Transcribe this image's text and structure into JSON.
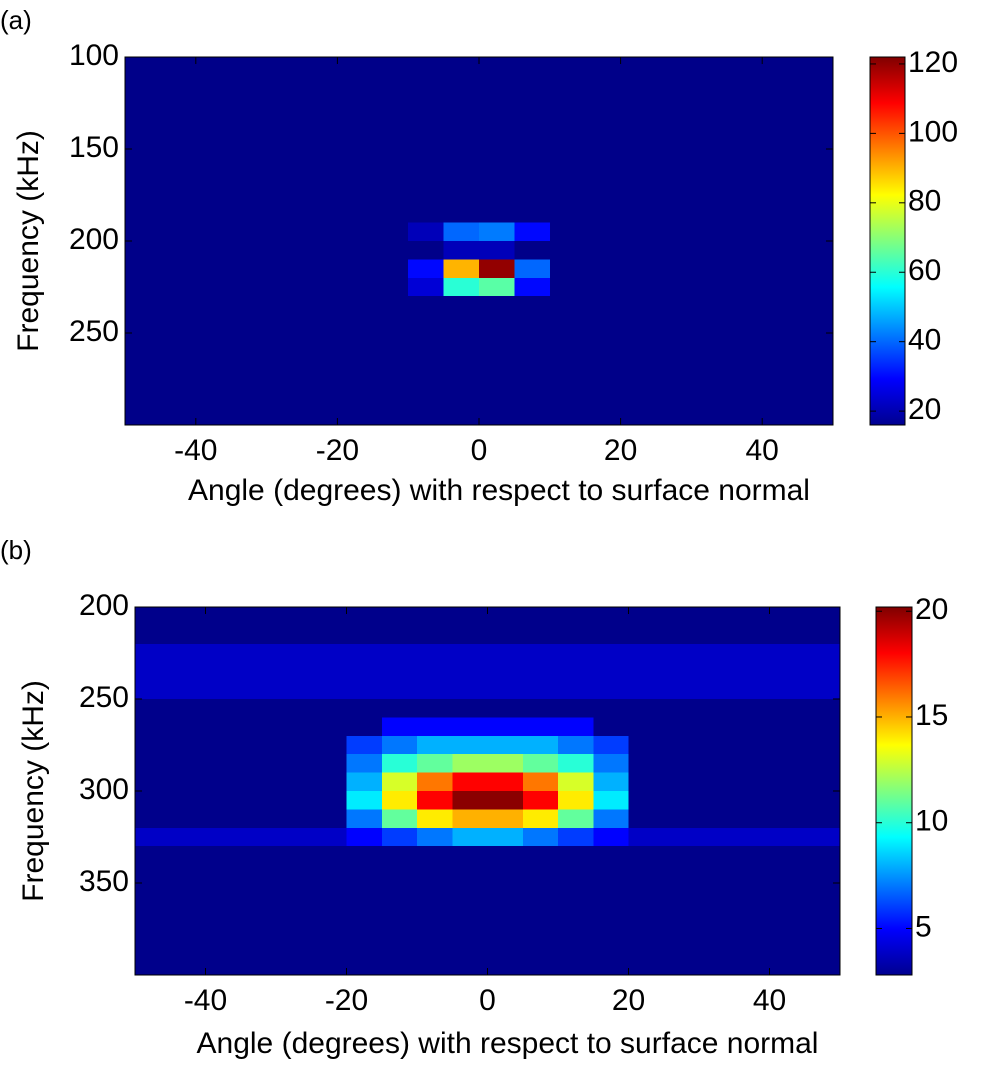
{
  "chart_data": [
    {
      "type": "heatmap",
      "label": "(a)",
      "x_label": "Angle (degrees) with respect to surface normal",
      "y_label": "Frequency (kHz)",
      "colormap": "jet",
      "y_reversed": true,
      "xlim": [
        -50,
        50
      ],
      "ylim": [
        100,
        300
      ],
      "xticks": [
        -40,
        -20,
        0,
        20,
        40
      ],
      "yticks": [
        100,
        150,
        200,
        250
      ],
      "clim": [
        16,
        122
      ],
      "cticks": [
        20,
        40,
        60,
        80,
        100,
        120
      ],
      "x_edges": [
        -50,
        -45,
        -40,
        -35,
        -30,
        -25,
        -20,
        -15,
        -10,
        -5,
        0,
        5,
        10,
        15,
        20,
        25,
        30,
        35,
        40,
        45,
        50
      ],
      "y_edges": [
        100,
        110,
        120,
        130,
        140,
        150,
        160,
        170,
        180,
        190,
        200,
        210,
        220,
        230,
        240,
        250,
        260,
        270,
        280,
        290,
        300
      ],
      "z": [
        [
          17,
          17,
          17,
          17,
          17,
          17,
          17,
          17,
          17,
          17,
          17,
          17,
          17,
          17,
          17,
          17,
          17,
          17,
          17,
          17
        ],
        [
          17,
          17,
          17,
          17,
          17,
          17,
          17,
          17,
          17,
          17,
          17,
          17,
          17,
          17,
          17,
          17,
          17,
          17,
          17,
          17
        ],
        [
          17,
          17,
          17,
          17,
          17,
          17,
          17,
          17,
          17,
          17,
          17,
          17,
          17,
          17,
          17,
          17,
          17,
          17,
          17,
          17
        ],
        [
          17,
          17,
          17,
          17,
          17,
          17,
          17,
          17,
          17,
          17,
          17,
          17,
          17,
          17,
          17,
          17,
          17,
          17,
          17,
          17
        ],
        [
          17,
          17,
          17,
          17,
          17,
          17,
          17,
          17,
          17,
          17,
          17,
          17,
          17,
          17,
          17,
          17,
          17,
          17,
          17,
          17
        ],
        [
          17,
          17,
          17,
          17,
          17,
          17,
          17,
          17,
          17,
          17,
          17,
          17,
          17,
          17,
          17,
          17,
          17,
          17,
          17,
          17
        ],
        [
          17,
          17,
          17,
          17,
          17,
          17,
          17,
          17,
          17,
          17,
          17,
          17,
          17,
          17,
          17,
          17,
          17,
          17,
          17,
          17
        ],
        [
          17,
          17,
          17,
          17,
          17,
          17,
          17,
          17,
          17,
          17,
          17,
          17,
          17,
          17,
          17,
          17,
          17,
          17,
          17,
          17
        ],
        [
          17,
          17,
          17,
          17,
          17,
          17,
          17,
          17,
          17,
          17,
          17,
          17,
          17,
          17,
          17,
          17,
          17,
          17,
          17,
          17
        ],
        [
          17,
          17,
          17,
          17,
          17,
          17,
          17,
          17,
          22,
          40,
          42,
          30,
          17,
          17,
          17,
          17,
          17,
          17,
          17,
          17
        ],
        [
          17,
          17,
          17,
          17,
          17,
          17,
          17,
          17,
          17,
          22,
          22,
          17,
          17,
          17,
          17,
          17,
          17,
          17,
          17,
          17
        ],
        [
          17,
          17,
          17,
          17,
          17,
          17,
          17,
          17,
          30,
          90,
          120,
          40,
          17,
          17,
          17,
          17,
          17,
          17,
          17,
          17
        ],
        [
          17,
          17,
          17,
          17,
          17,
          17,
          17,
          17,
          25,
          60,
          65,
          30,
          17,
          17,
          17,
          17,
          17,
          17,
          17,
          17
        ],
        [
          17,
          17,
          17,
          17,
          17,
          17,
          17,
          17,
          17,
          17,
          17,
          17,
          17,
          17,
          17,
          17,
          17,
          17,
          17,
          17
        ],
        [
          17,
          17,
          17,
          17,
          17,
          17,
          17,
          17,
          17,
          17,
          17,
          17,
          17,
          17,
          17,
          17,
          17,
          17,
          17,
          17
        ],
        [
          17,
          17,
          17,
          17,
          17,
          17,
          17,
          17,
          17,
          17,
          17,
          17,
          17,
          17,
          17,
          17,
          17,
          17,
          17,
          17
        ],
        [
          17,
          17,
          17,
          17,
          17,
          17,
          17,
          17,
          17,
          17,
          17,
          17,
          17,
          17,
          17,
          17,
          17,
          17,
          17,
          17
        ],
        [
          17,
          17,
          17,
          17,
          17,
          17,
          17,
          17,
          17,
          17,
          17,
          17,
          17,
          17,
          17,
          17,
          17,
          17,
          17,
          17
        ],
        [
          17,
          17,
          17,
          17,
          17,
          17,
          17,
          17,
          17,
          17,
          17,
          17,
          17,
          17,
          17,
          17,
          17,
          17,
          17,
          17
        ],
        [
          17,
          17,
          17,
          17,
          17,
          17,
          17,
          17,
          17,
          17,
          17,
          17,
          17,
          17,
          17,
          17,
          17,
          17,
          17,
          17
        ]
      ]
    },
    {
      "type": "heatmap",
      "label": "(b)",
      "x_label": "Angle (degrees) with respect to surface normal",
      "y_label": "Frequency (kHz)",
      "colormap": "jet",
      "y_reversed": true,
      "xlim": [
        -50,
        50
      ],
      "ylim": [
        200,
        400
      ],
      "xticks": [
        -40,
        -20,
        0,
        20,
        40
      ],
      "yticks": [
        200,
        250,
        300,
        350
      ],
      "clim": [
        2.8,
        20.2
      ],
      "cticks": [
        5,
        10,
        15,
        20
      ],
      "x_edges": [
        -50,
        -45,
        -40,
        -35,
        -30,
        -25,
        -20,
        -15,
        -10,
        -5,
        0,
        5,
        10,
        15,
        20,
        25,
        30,
        35,
        40,
        45,
        50
      ],
      "y_edges": [
        200,
        210,
        220,
        230,
        240,
        250,
        260,
        270,
        280,
        290,
        300,
        310,
        320,
        330,
        340,
        350,
        360,
        370,
        380,
        390,
        400
      ],
      "z": [
        [
          3,
          3,
          3,
          3,
          3,
          3,
          3,
          3,
          3,
          3,
          3,
          3,
          3,
          3,
          3,
          3,
          3,
          3,
          3,
          3
        ],
        [
          3,
          3,
          3,
          3,
          3,
          3,
          3,
          3,
          3,
          3,
          3,
          3,
          3,
          3,
          3,
          3,
          3,
          3,
          3,
          3
        ],
        [
          4,
          4,
          4,
          4,
          4,
          4,
          4,
          4,
          4,
          4,
          4,
          4,
          4,
          4,
          4,
          4,
          4,
          4,
          4,
          4
        ],
        [
          4,
          4,
          4,
          4,
          4,
          4,
          4,
          4,
          4,
          4,
          4,
          4,
          4,
          4,
          4,
          4,
          4,
          4,
          4,
          4
        ],
        [
          4,
          4,
          4,
          4,
          4,
          4,
          4,
          4,
          4,
          4,
          4,
          4,
          4,
          4,
          4,
          4,
          4,
          4,
          4,
          4
        ],
        [
          3,
          3,
          3,
          3,
          3,
          3,
          3,
          3,
          3,
          3,
          3,
          3,
          3,
          3,
          3,
          3,
          3,
          3,
          3,
          3
        ],
        [
          3,
          3,
          3,
          3,
          3,
          3,
          3,
          5,
          5,
          5,
          5,
          5,
          5,
          3,
          3,
          3,
          3,
          3,
          3,
          3
        ],
        [
          3,
          3,
          3,
          3,
          3,
          3,
          6,
          7,
          8,
          8,
          8,
          8,
          7,
          6,
          3,
          3,
          3,
          3,
          3,
          3
        ],
        [
          3,
          3,
          3,
          3,
          3,
          3,
          7,
          10,
          11,
          12,
          12,
          11,
          10,
          7,
          3,
          3,
          3,
          3,
          3,
          3
        ],
        [
          3,
          3,
          3,
          3,
          3,
          3,
          8,
          13,
          16,
          18,
          18,
          16,
          13,
          8,
          3,
          3,
          3,
          3,
          3,
          3
        ],
        [
          3,
          3,
          3,
          3,
          3,
          3,
          9,
          14,
          18,
          20,
          20,
          18,
          14,
          9,
          3,
          3,
          3,
          3,
          3,
          3
        ],
        [
          3,
          3,
          3,
          3,
          3,
          3,
          7,
          11,
          14,
          15,
          15,
          14,
          11,
          7,
          3,
          3,
          3,
          3,
          3,
          3
        ],
        [
          4,
          4,
          4,
          4,
          4,
          4,
          5,
          6,
          7,
          8,
          8,
          7,
          6,
          5,
          4,
          4,
          4,
          4,
          4,
          4
        ],
        [
          3,
          3,
          3,
          3,
          3,
          3,
          3,
          3,
          3,
          3,
          3,
          3,
          3,
          3,
          3,
          3,
          3,
          3,
          3,
          3
        ],
        [
          3,
          3,
          3,
          3,
          3,
          3,
          3,
          3,
          3,
          3,
          3,
          3,
          3,
          3,
          3,
          3,
          3,
          3,
          3,
          3
        ],
        [
          3,
          3,
          3,
          3,
          3,
          3,
          3,
          3,
          3,
          3,
          3,
          3,
          3,
          3,
          3,
          3,
          3,
          3,
          3,
          3
        ],
        [
          3,
          3,
          3,
          3,
          3,
          3,
          3,
          3,
          3,
          3,
          3,
          3,
          3,
          3,
          3,
          3,
          3,
          3,
          3,
          3
        ],
        [
          3,
          3,
          3,
          3,
          3,
          3,
          3,
          3,
          3,
          3,
          3,
          3,
          3,
          3,
          3,
          3,
          3,
          3,
          3,
          3
        ],
        [
          3,
          3,
          3,
          3,
          3,
          3,
          3,
          3,
          3,
          3,
          3,
          3,
          3,
          3,
          3,
          3,
          3,
          3,
          3,
          3
        ],
        [
          3,
          3,
          3,
          3,
          3,
          3,
          3,
          3,
          3,
          3,
          3,
          3,
          3,
          3,
          3,
          3,
          3,
          3,
          3,
          3
        ]
      ]
    }
  ]
}
